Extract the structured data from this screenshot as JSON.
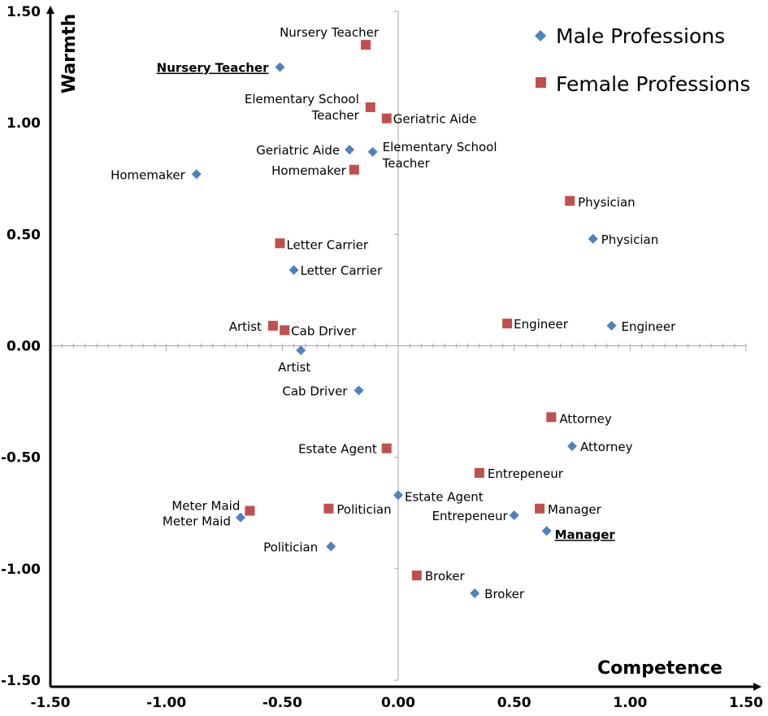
{
  "chart_data": {
    "type": "scatter",
    "title": "",
    "xlabel": "Competence",
    "ylabel": "Warmth",
    "xlim": [
      -1.5,
      1.5
    ],
    "ylim": [
      -1.5,
      1.5
    ],
    "x_ticks": [
      "-1.50",
      "-1.00",
      "-0.50",
      "0.00",
      "0.50",
      "1.00",
      "1.50"
    ],
    "y_ticks": [
      "1.50",
      "1.00",
      "0.50",
      "0.00",
      "-0.50",
      "-1.00",
      "-1.50"
    ],
    "legend_position": "top-right",
    "colors": {
      "male": "#4f81bd",
      "female": "#c0504d"
    },
    "series": [
      {
        "name": "Male Professions",
        "marker": "diamond",
        "points": [
          {
            "label": "Nursery Teacher",
            "x": -0.51,
            "y": 1.25,
            "emphasis": true
          },
          {
            "label": "Homemaker",
            "x": -0.87,
            "y": 0.77
          },
          {
            "label": "Geriatric Aide",
            "x": -0.21,
            "y": 0.88
          },
          {
            "label": "Elementary School Teacher",
            "x": -0.11,
            "y": 0.87
          },
          {
            "label": "Physician",
            "x": 0.84,
            "y": 0.48
          },
          {
            "label": "Letter Carrier",
            "x": -0.45,
            "y": 0.34
          },
          {
            "label": "Engineer",
            "x": 0.92,
            "y": 0.09
          },
          {
            "label": "Artist",
            "x": -0.42,
            "y": -0.02
          },
          {
            "label": "Cab Driver",
            "x": -0.17,
            "y": -0.2
          },
          {
            "label": "Attorney",
            "x": 0.75,
            "y": -0.45
          },
          {
            "label": "Estate Agent",
            "x": 0.0,
            "y": -0.67
          },
          {
            "label": "Entrepeneur",
            "x": 0.5,
            "y": -0.76
          },
          {
            "label": "Meter Maid",
            "x": -0.68,
            "y": -0.77
          },
          {
            "label": "Manager",
            "x": 0.64,
            "y": -0.83,
            "emphasis": true
          },
          {
            "label": "Politician",
            "x": -0.29,
            "y": -0.9
          },
          {
            "label": "Broker",
            "x": 0.33,
            "y": -1.11
          }
        ]
      },
      {
        "name": "Female Professions",
        "marker": "square",
        "points": [
          {
            "label": "Nursery Teacher",
            "x": -0.14,
            "y": 1.35
          },
          {
            "label": "Elementary School Teacher",
            "x": -0.12,
            "y": 1.07
          },
          {
            "label": "Geriatric Aide",
            "x": -0.05,
            "y": 1.02
          },
          {
            "label": "Homemaker",
            "x": -0.19,
            "y": 0.79
          },
          {
            "label": "Physician",
            "x": 0.74,
            "y": 0.65
          },
          {
            "label": "Letter Carrier",
            "x": -0.51,
            "y": 0.46
          },
          {
            "label": "Artist",
            "x": -0.54,
            "y": 0.09
          },
          {
            "label": "Cab Driver",
            "x": -0.49,
            "y": 0.07
          },
          {
            "label": "Engineer",
            "x": 0.47,
            "y": 0.1
          },
          {
            "label": "Attorney",
            "x": 0.66,
            "y": -0.32
          },
          {
            "label": "Estate Agent",
            "x": -0.05,
            "y": -0.46
          },
          {
            "label": "Entrepeneur",
            "x": 0.35,
            "y": -0.57
          },
          {
            "label": "Politician",
            "x": -0.3,
            "y": -0.73
          },
          {
            "label": "Manager",
            "x": 0.61,
            "y": -0.73
          },
          {
            "label": "Meter Maid",
            "x": -0.64,
            "y": -0.74
          },
          {
            "label": "Broker",
            "x": 0.08,
            "y": -1.03
          }
        ]
      }
    ]
  }
}
